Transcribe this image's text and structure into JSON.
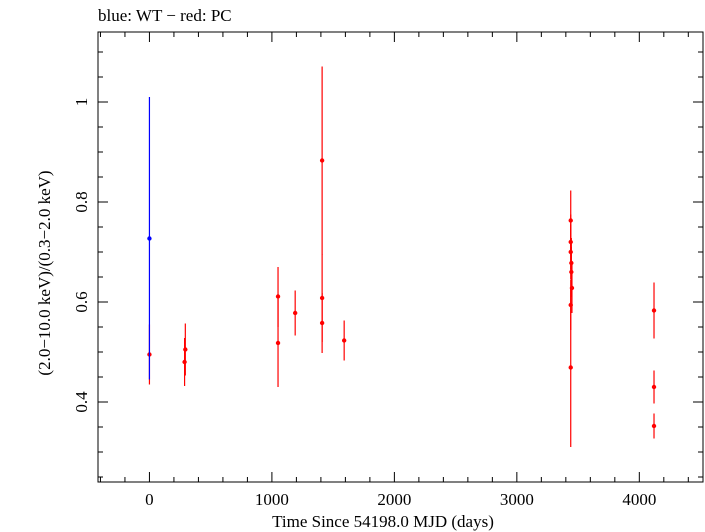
{
  "chart_data": {
    "type": "scatter",
    "title": "blue: WT − red: PC",
    "xlabel": "Time Since 54198.0 MJD (days)",
    "ylabel": "(2.0−10.0 keV)/(0.3−2.0 keV)",
    "xlim": [
      -420,
      4520
    ],
    "ylim": [
      0.24,
      1.14
    ],
    "xticks": [
      0,
      1000,
      2000,
      3000,
      4000
    ],
    "xtick_labels": [
      "0",
      "1000",
      "2000",
      "3000",
      "4000"
    ],
    "yticks": [
      0.4,
      0.6,
      0.8,
      1.0
    ],
    "ytick_labels": [
      "0.4",
      "0.6",
      "0.8",
      "1"
    ],
    "grid": false,
    "series": [
      {
        "name": "WT",
        "color": "#0000ff",
        "points": [
          {
            "x": 0,
            "y": 0.727,
            "ylo": 0.445,
            "yhi": 1.01
          }
        ]
      },
      {
        "name": "PC",
        "color": "#ff0000",
        "points": [
          {
            "x": 0,
            "y": 0.495,
            "ylo": 0.435,
            "yhi": 0.555
          },
          {
            "x": 287,
            "y": 0.48,
            "ylo": 0.432,
            "yhi": 0.528
          },
          {
            "x": 293,
            "y": 0.505,
            "ylo": 0.453,
            "yhi": 0.557
          },
          {
            "x": 1050,
            "y": 0.611,
            "ylo": 0.55,
            "yhi": 0.67
          },
          {
            "x": 1050,
            "y": 0.518,
            "ylo": 0.43,
            "yhi": 0.606
          },
          {
            "x": 1190,
            "y": 0.578,
            "ylo": 0.533,
            "yhi": 0.623
          },
          {
            "x": 1410,
            "y": 0.883,
            "ylo": 0.695,
            "yhi": 1.071
          },
          {
            "x": 1410,
            "y": 0.608,
            "ylo": 0.52,
            "yhi": 0.696
          },
          {
            "x": 1410,
            "y": 0.558,
            "ylo": 0.498,
            "yhi": 0.618
          },
          {
            "x": 1590,
            "y": 0.523,
            "ylo": 0.483,
            "yhi": 0.563
          },
          {
            "x": 3440,
            "y": 0.763,
            "ylo": 0.703,
            "yhi": 0.823
          },
          {
            "x": 3440,
            "y": 0.72,
            "ylo": 0.665,
            "yhi": 0.775
          },
          {
            "x": 3440,
            "y": 0.7,
            "ylo": 0.645,
            "yhi": 0.755
          },
          {
            "x": 3445,
            "y": 0.678,
            "ylo": 0.628,
            "yhi": 0.728
          },
          {
            "x": 3445,
            "y": 0.66,
            "ylo": 0.61,
            "yhi": 0.71
          },
          {
            "x": 3450,
            "y": 0.628,
            "ylo": 0.578,
            "yhi": 0.678
          },
          {
            "x": 3440,
            "y": 0.594,
            "ylo": 0.544,
            "yhi": 0.644
          },
          {
            "x": 3440,
            "y": 0.469,
            "ylo": 0.31,
            "yhi": 0.628
          },
          {
            "x": 4120,
            "y": 0.583,
            "ylo": 0.527,
            "yhi": 0.639
          },
          {
            "x": 4120,
            "y": 0.43,
            "ylo": 0.397,
            "yhi": 0.463
          },
          {
            "x": 4120,
            "y": 0.352,
            "ylo": 0.327,
            "yhi": 0.377
          }
        ]
      }
    ]
  }
}
